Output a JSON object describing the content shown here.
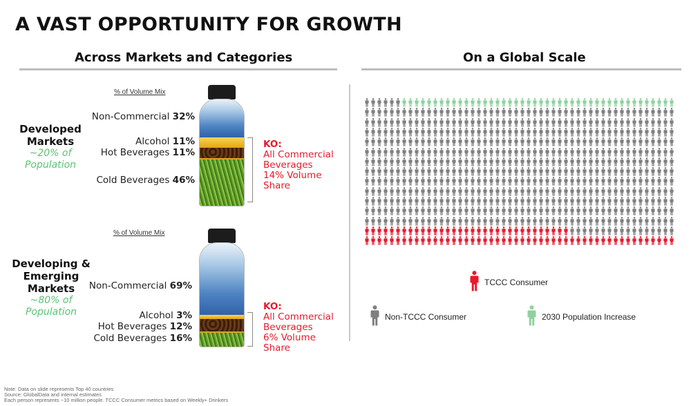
{
  "title": "A VAST OPPORTUNITY FOR GROWTH",
  "left_section": {
    "title": "Across Markets and Categories"
  },
  "right_section": {
    "title": "On a Global Scale"
  },
  "developed": {
    "mix_header": "% of Volume Mix",
    "name_line1": "Developed",
    "name_line2": "Markets",
    "pop_line1": "~20% of",
    "pop_line2": "Population",
    "categories": [
      {
        "label": "Non-Commercial",
        "value": "32%"
      },
      {
        "label": "Alcohol",
        "value": "11%"
      },
      {
        "label": "Hot Beverages",
        "value": "11%"
      },
      {
        "label": "Cold Beverages",
        "value": "46%"
      }
    ],
    "ko_head": "KO:",
    "ko_lines": [
      "All Commercial",
      "Beverages",
      "14% Volume",
      "Share"
    ]
  },
  "developing": {
    "mix_header": "% of Volume Mix",
    "name_line1": "Developing &",
    "name_line2": "Emerging",
    "name_line3": "Markets",
    "pop_line1": "~80% of",
    "pop_line2": "Population",
    "categories": [
      {
        "label": "Non-Commercial",
        "value": "69%"
      },
      {
        "label": "Alcohol",
        "value": "3%"
      },
      {
        "label": "Hot Beverages",
        "value": "12%"
      },
      {
        "label": "Cold Beverages",
        "value": "16%"
      }
    ],
    "ko_head": "KO:",
    "ko_lines": [
      "All Commercial",
      "Beverages",
      "6% Volume",
      "Share"
    ]
  },
  "legend": {
    "tccc": "TCCC Consumer",
    "non_tccc": "Non-TCCC Consumer",
    "increase": "2030 Population Increase"
  },
  "colors": {
    "tccc": "#e8192c",
    "non_tccc": "#7f7f7f",
    "increase": "#8fd19e",
    "accent_green": "#5cc274"
  },
  "footnotes": [
    "Note: Data on slide represents Top 40 countries",
    "Source: GlobalData and internal estimates",
    "Each person represents ~10 million people. TCCC Consumer metrics based on Weekly+ Drinkers"
  ]
}
